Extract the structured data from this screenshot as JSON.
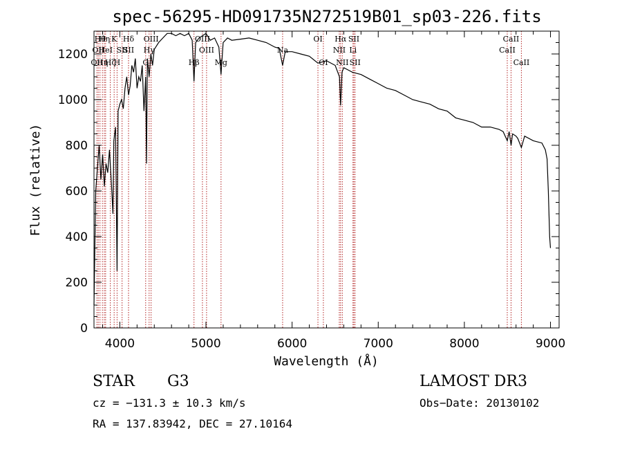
{
  "chart_data": {
    "type": "line",
    "title": "spec-56295-HD091735N272519B01_sp03-226.fits",
    "xlabel": "Wavelength (Å)",
    "ylabel": "Flux (relative)",
    "xlim": [
      3700,
      9100
    ],
    "ylim": [
      0,
      1300
    ],
    "x_ticks": [
      4000,
      5000,
      6000,
      7000,
      8000,
      9000
    ],
    "y_ticks": [
      0,
      200,
      400,
      600,
      800,
      1000,
      1200
    ],
    "x_tick_labels": [
      "4000",
      "5000",
      "6000",
      "7000",
      "8000",
      "9000"
    ],
    "y_tick_labels": [
      "0",
      "200",
      "400",
      "600",
      "800",
      "1000",
      "1200"
    ],
    "series": [
      {
        "name": "flux",
        "x": [
          3700,
          3720,
          3740,
          3760,
          3780,
          3800,
          3820,
          3840,
          3860,
          3880,
          3900,
          3920,
          3930,
          3950,
          3968,
          3980,
          4000,
          4020,
          4040,
          4060,
          4080,
          4101,
          4120,
          4140,
          4160,
          4180,
          4200,
          4220,
          4240,
          4260,
          4280,
          4300,
          4310,
          4320,
          4340,
          4360,
          4380,
          4400,
          4450,
          4500,
          4550,
          4600,
          4650,
          4700,
          4750,
          4800,
          4840,
          4861,
          4880,
          4920,
          4960,
          5000,
          5050,
          5100,
          5150,
          5175,
          5200,
          5250,
          5300,
          5400,
          5500,
          5600,
          5700,
          5800,
          5850,
          5890,
          5920,
          6000,
          6100,
          6200,
          6300,
          6400,
          6500,
          6550,
          6563,
          6580,
          6600,
          6650,
          6700,
          6800,
          6900,
          7000,
          7100,
          7200,
          7300,
          7400,
          7500,
          7600,
          7700,
          7800,
          7900,
          8000,
          8100,
          8200,
          8300,
          8400,
          8450,
          8498,
          8520,
          8542,
          8560,
          8600,
          8620,
          8662,
          8700,
          8800,
          8900,
          8940,
          8960,
          8975,
          8990,
          9000
        ],
        "y": [
          100,
          600,
          700,
          800,
          650,
          760,
          620,
          720,
          680,
          780,
          650,
          500,
          820,
          880,
          250,
          950,
          980,
          1000,
          960,
          1050,
          1100,
          1020,
          1060,
          1150,
          1120,
          1180,
          1050,
          1100,
          1080,
          1150,
          950,
          1100,
          720,
          1180,
          1100,
          1200,
          1150,
          1220,
          1250,
          1270,
          1290,
          1290,
          1280,
          1290,
          1280,
          1290,
          1260,
          1080,
          1250,
          1270,
          1280,
          1290,
          1260,
          1270,
          1230,
          1110,
          1250,
          1270,
          1260,
          1265,
          1270,
          1260,
          1250,
          1230,
          1225,
          1150,
          1210,
          1210,
          1200,
          1190,
          1160,
          1170,
          1150,
          1100,
          975,
          1120,
          1140,
          1130,
          1120,
          1110,
          1090,
          1070,
          1050,
          1040,
          1020,
          1000,
          990,
          980,
          960,
          950,
          920,
          910,
          900,
          880,
          880,
          870,
          860,
          820,
          860,
          800,
          850,
          840,
          830,
          790,
          840,
          820,
          810,
          780,
          740,
          600,
          400,
          350
        ]
      }
    ],
    "line_markers": [
      {
        "wavelength": 3734,
        "label": "OII",
        "row": 2
      },
      {
        "wavelength": 3750,
        "label": "OII",
        "row": 1
      },
      {
        "wavelength": 3770,
        "label": "Hθ",
        "row": 0
      },
      {
        "wavelength": 3798,
        "label": "Hη",
        "row": 2
      },
      {
        "wavelength": 3820,
        "label": "Hη",
        "row": 0
      },
      {
        "wavelength": 3835,
        "label": "HeI",
        "row": 1
      },
      {
        "wavelength": 3889,
        "label": "Hζ",
        "row": 2
      },
      {
        "wavelength": 3934,
        "label": "K",
        "row": 0
      },
      {
        "wavelength": 3968,
        "label": "H",
        "row": 2
      },
      {
        "wavelength": 4026,
        "label": "SII",
        "row": 1
      },
      {
        "wavelength": 4101,
        "label": "Hδ",
        "row": 0
      },
      {
        "wavelength": 4101,
        "label": "SII",
        "row": 1
      },
      {
        "wavelength": 4300,
        "label": "G",
        "row": 2
      },
      {
        "wavelength": 4340,
        "label": "Hγ",
        "row": 1
      },
      {
        "wavelength": 4363,
        "label": "OIII",
        "row": 0
      },
      {
        "wavelength": 4861,
        "label": "Hβ",
        "row": 2
      },
      {
        "wavelength": 4959,
        "label": "OIII",
        "row": 0
      },
      {
        "wavelength": 5007,
        "label": "OIII",
        "row": 1
      },
      {
        "wavelength": 5175,
        "label": "Mg",
        "row": 2
      },
      {
        "wavelength": 5890,
        "label": "Na",
        "row": 1
      },
      {
        "wavelength": 6300,
        "label": "OI",
        "row": 0
      },
      {
        "wavelength": 6363,
        "label": "OI",
        "row": 2
      },
      {
        "wavelength": 6548,
        "label": "NII",
        "row": 1
      },
      {
        "wavelength": 6563,
        "label": "Hα",
        "row": 0
      },
      {
        "wavelength": 6583,
        "label": "NII",
        "row": 2
      },
      {
        "wavelength": 6707,
        "label": "Li",
        "row": 1
      },
      {
        "wavelength": 6717,
        "label": "SII",
        "row": 0
      },
      {
        "wavelength": 6731,
        "label": "SII",
        "row": 2
      },
      {
        "wavelength": 8498,
        "label": "CaII",
        "row": 1
      },
      {
        "wavelength": 8542,
        "label": "CaII",
        "row": 0
      },
      {
        "wavelength": 8662,
        "label": "CaII",
        "row": 2
      }
    ]
  },
  "info": {
    "object_class": "STAR",
    "subclass": "G3",
    "survey": "LAMOST DR3",
    "cz": "cz = −131.3 ± 10.3 km/s",
    "obs_date": "Obs−Date: 20130102",
    "coords": "RA = 137.83942, DEC =  27.10164"
  },
  "colors": {
    "line": "#000000",
    "marker": "#b22222",
    "background": "#ffffff"
  }
}
